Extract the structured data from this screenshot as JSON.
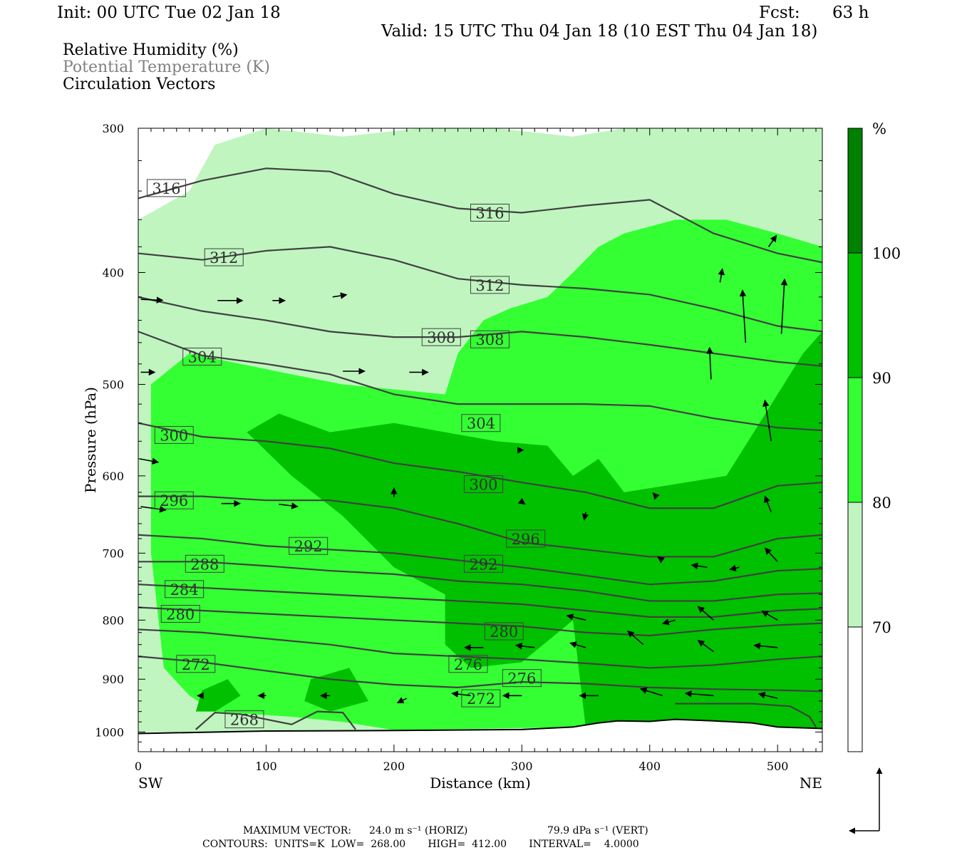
{
  "header": {
    "init": "Init: 00 UTC Tue 02 Jan 18",
    "fcst_label": "Fcst:",
    "fcst_value": "63 h",
    "valid": "Valid: 15 UTC Thu 04 Jan 18 (10 EST Thu 04 Jan 18)"
  },
  "fields": [
    {
      "label": "Relative Humidity (%)",
      "color": "#000000"
    },
    {
      "label": "Potential Temperature (K)",
      "color": "#808080"
    },
    {
      "label": "Circulation Vectors",
      "color": "#000000"
    }
  ],
  "chart_data": {
    "type": "heatmap",
    "subtype": "vertical cross-section",
    "xlabel": "Distance (km)",
    "ylabel": "Pressure (hPa)",
    "xlim": [
      0,
      535
    ],
    "ylim": [
      1040,
      300
    ],
    "y_scale": "log",
    "xticks": [
      0,
      100,
      200,
      300,
      400,
      500
    ],
    "yticks": [
      300,
      400,
      500,
      600,
      700,
      800,
      900,
      1000
    ],
    "x_end_labels": {
      "left": "SW",
      "right": "NE"
    },
    "colorbar": {
      "unit": "%",
      "levels": [
        70,
        80,
        90,
        100
      ],
      "colors": [
        "#ffffff",
        "#c0f5c0",
        "#33ff33",
        "#00c000",
        "#008000"
      ]
    },
    "isentropes": {
      "unit": "K",
      "color": "#404040",
      "lines": [
        {
          "theta": 316,
          "x": [
            0,
            50,
            100,
            150,
            200,
            250,
            300,
            350,
            400,
            450,
            500,
            535
          ],
          "p": [
            345,
            333,
            325,
            327,
            342,
            352,
            355,
            350,
            346,
            370,
            385,
            392
          ]
        },
        {
          "theta": 312,
          "x": [
            0,
            50,
            100,
            150,
            200,
            250,
            300,
            350,
            400,
            450,
            500,
            535
          ],
          "p": [
            385,
            390,
            383,
            380,
            390,
            405,
            410,
            413,
            418,
            430,
            445,
            450
          ]
        },
        {
          "theta": 308,
          "x": [
            0,
            50,
            100,
            150,
            200,
            250,
            300,
            350,
            400,
            450,
            500,
            535
          ],
          "p": [
            420,
            432,
            440,
            450,
            455,
            455,
            450,
            455,
            462,
            470,
            478,
            482
          ]
        },
        {
          "theta": 304,
          "x": [
            0,
            50,
            100,
            150,
            200,
            250,
            300,
            350,
            400,
            450,
            500,
            535
          ],
          "p": [
            450,
            472,
            480,
            490,
            510,
            520,
            520,
            520,
            522,
            535,
            545,
            548
          ]
        },
        {
          "theta": 300,
          "x": [
            0,
            50,
            100,
            150,
            200,
            250,
            300,
            350,
            400,
            450,
            500,
            535
          ],
          "p": [
            540,
            555,
            560,
            568,
            585,
            595,
            608,
            620,
            640,
            640,
            612,
            608
          ]
        },
        {
          "theta": 296,
          "x": [
            0,
            50,
            100,
            150,
            200,
            250,
            300,
            350,
            400,
            450,
            500,
            535
          ],
          "p": [
            625,
            625,
            630,
            630,
            640,
            660,
            685,
            695,
            705,
            705,
            680,
            675
          ]
        },
        {
          "theta": 292,
          "x": [
            0,
            50,
            100,
            150,
            200,
            250,
            300,
            350,
            400,
            450,
            500,
            535
          ],
          "p": [
            675,
            680,
            690,
            695,
            700,
            710,
            720,
            732,
            745,
            740,
            725,
            722
          ]
        },
        {
          "theta": 288,
          "x": [
            0,
            50,
            100,
            150,
            200,
            250,
            300,
            350,
            400,
            450,
            500,
            535
          ],
          "p": [
            712,
            712,
            718,
            725,
            730,
            740,
            745,
            755,
            770,
            770,
            760,
            758
          ]
        },
        {
          "theta": 284,
          "x": [
            0,
            50,
            100,
            150,
            200,
            250,
            300,
            350,
            400,
            450,
            500,
            535
          ],
          "p": [
            745,
            750,
            755,
            760,
            765,
            770,
            775,
            785,
            795,
            795,
            785,
            782
          ]
        },
        {
          "theta": 280,
          "x": [
            0,
            50,
            100,
            150,
            200,
            250,
            300,
            350,
            400,
            450,
            500,
            535
          ],
          "p": [
            780,
            785,
            790,
            795,
            800,
            805,
            810,
            820,
            825,
            815,
            808,
            805
          ]
        },
        {
          "theta": 276,
          "x": [
            0,
            50,
            100,
            150,
            200,
            250,
            300,
            350,
            400,
            450,
            500,
            535
          ],
          "p": [
            815,
            820,
            830,
            840,
            855,
            860,
            865,
            872,
            880,
            875,
            865,
            860
          ]
        },
        {
          "theta": 272,
          "x": [
            0,
            50,
            100,
            150,
            200,
            250,
            300,
            350,
            400,
            450,
            500,
            535
          ],
          "p": [
            860,
            870,
            885,
            900,
            910,
            915,
            905,
            908,
            915,
            918,
            920,
            922
          ]
        },
        {
          "theta": 268,
          "x": [
            45,
            60,
            80,
            100,
            120,
            140,
            160,
            170
          ],
          "p": [
            995,
            962,
            965,
            975,
            985,
            960,
            962,
            995
          ]
        },
        {
          "theta": 268,
          "x": [
            420,
            480,
            510,
            525,
            530
          ],
          "p": [
            945,
            945,
            950,
            970,
            990
          ]
        }
      ],
      "labels": [
        {
          "text": "316",
          "x": 22,
          "p": 338
        },
        {
          "text": "316",
          "x": 275,
          "p": 355
        },
        {
          "text": "312",
          "x": 67,
          "p": 388
        },
        {
          "text": "312",
          "x": 275,
          "p": 410
        },
        {
          "text": "308",
          "x": 237,
          "p": 455
        },
        {
          "text": "308",
          "x": 275,
          "p": 457
        },
        {
          "text": "304",
          "x": 50,
          "p": 473
        },
        {
          "text": "304",
          "x": 268,
          "p": 540
        },
        {
          "text": "300",
          "x": 28,
          "p": 553
        },
        {
          "text": "300",
          "x": 270,
          "p": 610
        },
        {
          "text": "296",
          "x": 28,
          "p": 630
        },
        {
          "text": "296",
          "x": 303,
          "p": 680
        },
        {
          "text": "292",
          "x": 133,
          "p": 690
        },
        {
          "text": "292",
          "x": 270,
          "p": 715
        },
        {
          "text": "288",
          "x": 52,
          "p": 715
        },
        {
          "text": "284",
          "x": 36,
          "p": 752
        },
        {
          "text": "280",
          "x": 33,
          "p": 790
        },
        {
          "text": "280",
          "x": 286,
          "p": 818
        },
        {
          "text": "276",
          "x": 258,
          "p": 873
        },
        {
          "text": "276",
          "x": 300,
          "p": 898
        },
        {
          "text": "272",
          "x": 45,
          "p": 873
        },
        {
          "text": "272",
          "x": 268,
          "p": 935
        },
        {
          "text": "268",
          "x": 83,
          "p": 975
        }
      ]
    },
    "terrain_surface_hPa": [
      [
        0,
        1003
      ],
      [
        100,
        998
      ],
      [
        200,
        997
      ],
      [
        300,
        995
      ],
      [
        340,
        990
      ],
      [
        360,
        982
      ],
      [
        375,
        978
      ],
      [
        400,
        979
      ],
      [
        420,
        975
      ],
      [
        450,
        978
      ],
      [
        480,
        982
      ],
      [
        500,
        990
      ],
      [
        535,
        993
      ]
    ],
    "vectors": [
      {
        "x": 2,
        "p": 422,
        "u": 14,
        "w": -0.4
      },
      {
        "x": 62,
        "p": 423,
        "u": 16,
        "w": 0
      },
      {
        "x": 105,
        "p": 423,
        "u": 8,
        "w": 0
      },
      {
        "x": 152,
        "p": 420,
        "u": 9,
        "w": 1
      },
      {
        "x": 2,
        "p": 488,
        "u": 9,
        "w": 0
      },
      {
        "x": 160,
        "p": 487,
        "u": 14,
        "w": 0
      },
      {
        "x": 212,
        "p": 488,
        "u": 12,
        "w": 0
      },
      {
        "x": 1,
        "p": 580,
        "u": 12,
        "w": -1.5
      },
      {
        "x": 2,
        "p": 638,
        "u": 16,
        "w": -1.5
      },
      {
        "x": 65,
        "p": 634,
        "u": 12,
        "w": 0
      },
      {
        "x": 110,
        "p": 635,
        "u": 12,
        "w": -1
      },
      {
        "x": 200,
        "p": 626,
        "u": 0,
        "w": 4
      },
      {
        "x": 475,
        "p": 460,
        "u": -2,
        "w": 23
      },
      {
        "x": 448,
        "p": 495,
        "u": -1,
        "w": 14
      },
      {
        "x": 503,
        "p": 452,
        "u": 2,
        "w": 24
      },
      {
        "x": 495,
        "p": 560,
        "u": -4,
        "w": 18
      },
      {
        "x": 493,
        "p": 380,
        "u": 5,
        "w": 5
      },
      {
        "x": 455,
        "p": 408,
        "u": 1.5,
        "w": 6
      },
      {
        "x": 495,
        "p": 645,
        "u": -4,
        "w": 7
      },
      {
        "x": 470,
        "p": 720,
        "u": -6,
        "w": -1
      },
      {
        "x": 500,
        "p": 712,
        "u": -8,
        "w": 6
      },
      {
        "x": 450,
        "p": 800,
        "u": -10,
        "w": 6
      },
      {
        "x": 500,
        "p": 800,
        "u": -10,
        "w": 4
      },
      {
        "x": 450,
        "p": 852,
        "u": -10,
        "w": 5
      },
      {
        "x": 500,
        "p": 845,
        "u": -15,
        "w": 1
      },
      {
        "x": 395,
        "p": 840,
        "u": -10,
        "w": 6
      },
      {
        "x": 350,
        "p": 845,
        "u": -10,
        "w": 2
      },
      {
        "x": 350,
        "p": 800,
        "u": -12,
        "w": 2
      },
      {
        "x": 310,
        "p": 845,
        "u": -12,
        "w": 1
      },
      {
        "x": 270,
        "p": 845,
        "u": -12,
        "w": 0
      },
      {
        "x": 500,
        "p": 935,
        "u": -12,
        "w": 2
      },
      {
        "x": 450,
        "p": 930,
        "u": -18,
        "w": 1
      },
      {
        "x": 410,
        "p": 930,
        "u": -14,
        "w": 3
      },
      {
        "x": 360,
        "p": 930,
        "u": -12,
        "w": 0
      },
      {
        "x": 300,
        "p": 930,
        "u": -12,
        "w": 0
      },
      {
        "x": 260,
        "p": 930,
        "u": -12,
        "w": 1
      },
      {
        "x": 210,
        "p": 935,
        "u": -6,
        "w": -2
      },
      {
        "x": 150,
        "p": 930,
        "u": -6,
        "w": 0
      },
      {
        "x": 100,
        "p": 930,
        "u": -5,
        "w": 0
      },
      {
        "x": 50,
        "p": 930,
        "u": -3,
        "w": 0
      },
      {
        "x": 420,
        "p": 800,
        "u": -8,
        "w": -1.5
      },
      {
        "x": 410,
        "p": 710,
        "u": -3,
        "w": 1.5
      },
      {
        "x": 445,
        "p": 720,
        "u": -10,
        "w": 1
      },
      {
        "x": 350,
        "p": 645,
        "u": -1,
        "w": -3.5
      },
      {
        "x": 405,
        "p": 625,
        "u": -2,
        "w": 1.5
      },
      {
        "x": 300,
        "p": 632,
        "u": 2,
        "w": -1
      },
      {
        "x": 300,
        "p": 570,
        "u": 1,
        "w": 0
      }
    ]
  },
  "footer": {
    "max_vector_label": "MAXIMUM VECTOR:",
    "max_horiz": "24.0 m s⁻¹ (HORIZ)",
    "max_vert": "79.9 dPa s⁻¹ (VERT)",
    "contours_line": "CONTOURS:  UNITS=K  LOW=  268.00       HIGH=  412.00       INTERVAL=    4.0000"
  }
}
